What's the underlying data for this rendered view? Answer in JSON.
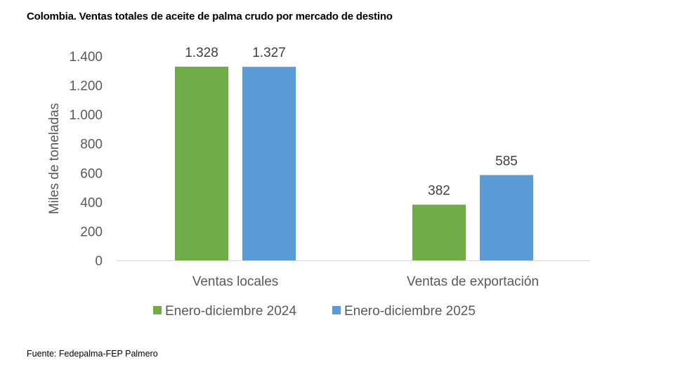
{
  "title": "Colombia. Ventas totales de aceite de palma crudo por mercado de destino",
  "source": "Fuente: Fedepalma-FEP Palmero",
  "chart_data": {
    "type": "bar",
    "title": "Colombia. Ventas totales de aceite de palma crudo por mercado de destino",
    "xlabel": "",
    "ylabel": "Miles de toneladas",
    "ylim": [
      0,
      1400
    ],
    "yticks": [
      0,
      200,
      400,
      600,
      800,
      1000,
      1200,
      1400
    ],
    "ytick_labels": [
      "0",
      "200",
      "400",
      "600",
      "800",
      "1.000",
      "1.200",
      "1.400"
    ],
    "categories": [
      "Ventas locales",
      "Ventas de exportación"
    ],
    "series": [
      {
        "name": "Enero-diciembre 2024",
        "color": "#70ad47",
        "values": [
          1328,
          382
        ],
        "labels": [
          "1.328",
          "382"
        ]
      },
      {
        "name": "Enero-diciembre 2025",
        "color": "#5b9bd5",
        "values": [
          1327,
          585
        ],
        "labels": [
          "1.327",
          "585"
        ]
      }
    ],
    "grid": false,
    "legend": "bottom"
  }
}
